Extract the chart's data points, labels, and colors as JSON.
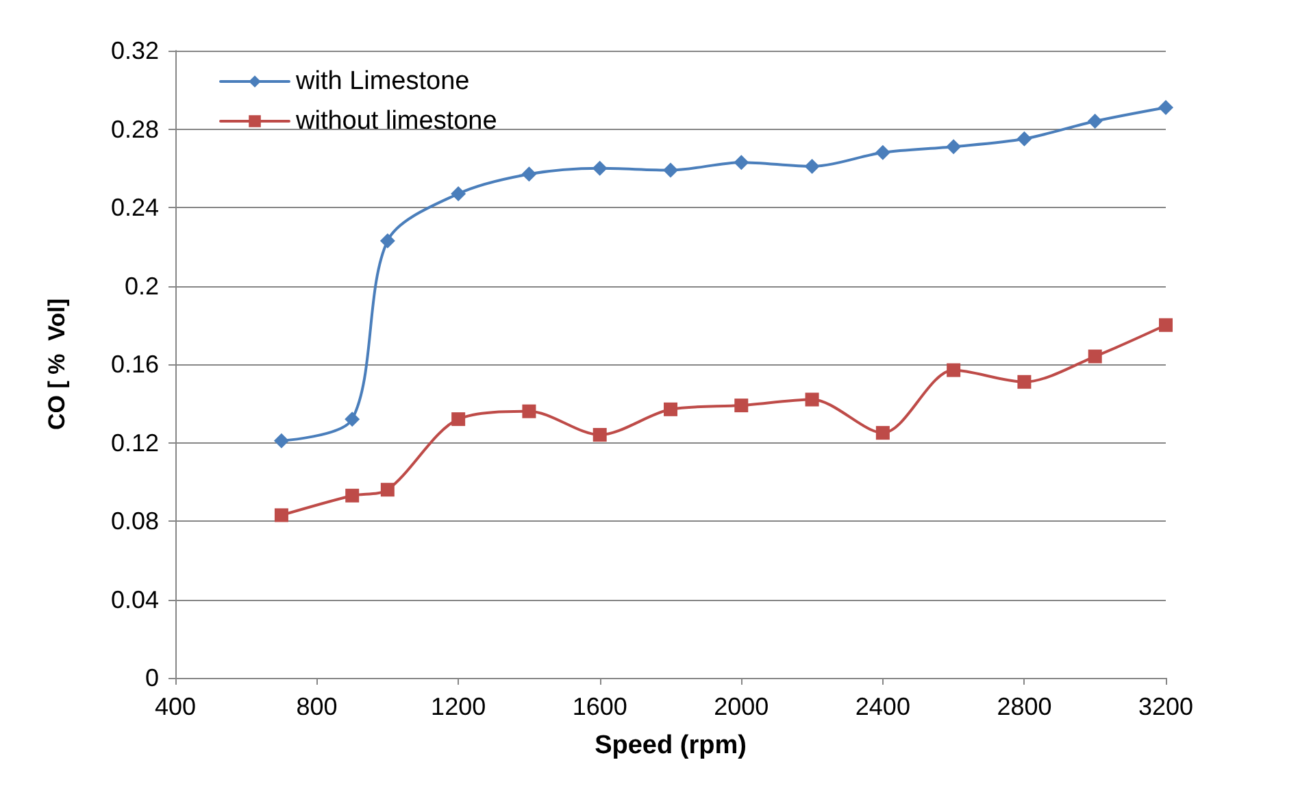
{
  "chart_data": {
    "type": "line",
    "xlabel": "Speed (rpm)",
    "ylabel": "CO [ %  Vol]",
    "x": [
      700,
      900,
      1000,
      1200,
      1400,
      1600,
      1800,
      2000,
      2200,
      2400,
      2600,
      2800,
      3000,
      3200
    ],
    "series": [
      {
        "name": "with Limestone",
        "color": "#4a7ebb",
        "marker": "diamond",
        "values": [
          0.121,
          0.132,
          0.223,
          0.247,
          0.257,
          0.26,
          0.259,
          0.263,
          0.261,
          0.268,
          0.271,
          0.275,
          0.284,
          0.291
        ]
      },
      {
        "name": "without limestone",
        "color": "#be4b48",
        "marker": "square",
        "values": [
          0.083,
          0.093,
          0.096,
          0.132,
          0.136,
          0.124,
          0.137,
          0.139,
          0.142,
          0.125,
          0.157,
          0.151,
          0.164,
          0.18
        ]
      }
    ],
    "xlim": [
      400,
      3200
    ],
    "xticks": [
      400,
      800,
      1200,
      1600,
      2000,
      2400,
      2800,
      3200
    ],
    "ylim": [
      0,
      0.32
    ],
    "yticks": [
      0,
      0.04,
      0.08,
      0.12,
      0.16,
      0.2,
      0.24,
      0.28,
      0.32
    ],
    "grid": "y",
    "legend": "top left",
    "line_style": "solid"
  }
}
